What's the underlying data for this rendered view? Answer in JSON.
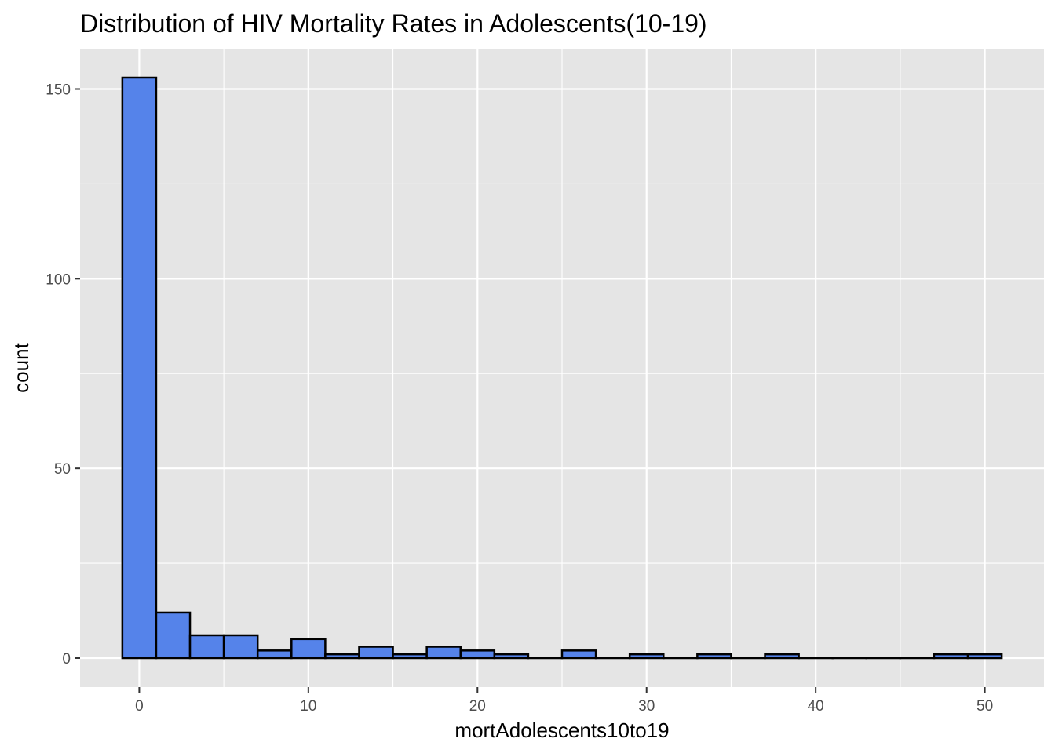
{
  "chart_data": {
    "type": "bar",
    "title": "Distribution of HIV Mortality Rates in Adolescents(10-19)",
    "xlabel": "mortAdolescents10to19",
    "ylabel": "count",
    "bin_width": 2,
    "bin_centers": [
      0,
      2,
      4,
      6,
      8,
      10,
      12,
      14,
      16,
      18,
      20,
      22,
      24,
      26,
      28,
      30,
      32,
      34,
      36,
      38,
      40,
      42,
      44,
      46,
      48,
      50
    ],
    "values": [
      153,
      12,
      6,
      6,
      2,
      5,
      1,
      3,
      1,
      3,
      2,
      1,
      0,
      2,
      0,
      1,
      0,
      1,
      0,
      1,
      0,
      0,
      0,
      0,
      1,
      1
    ],
    "xlim": [
      -3.5,
      53.5
    ],
    "ylim": [
      -7.65,
      160.65
    ],
    "x_ticks": [
      0,
      10,
      20,
      30,
      40,
      50
    ],
    "x_tick_labels": [
      "0",
      "10",
      "20",
      "30",
      "40",
      "50"
    ],
    "y_ticks": [
      0,
      50,
      100,
      150
    ],
    "y_tick_labels": [
      "0",
      "50",
      "100",
      "150"
    ],
    "grid": true,
    "colors": {
      "panel_background": "#e5e5e5",
      "grid_line": "#ffffff",
      "bar_fill": "#5583ea",
      "bar_outline": "#000000",
      "tick_text": "#4d4d4d",
      "axis_title": "#000000"
    }
  }
}
